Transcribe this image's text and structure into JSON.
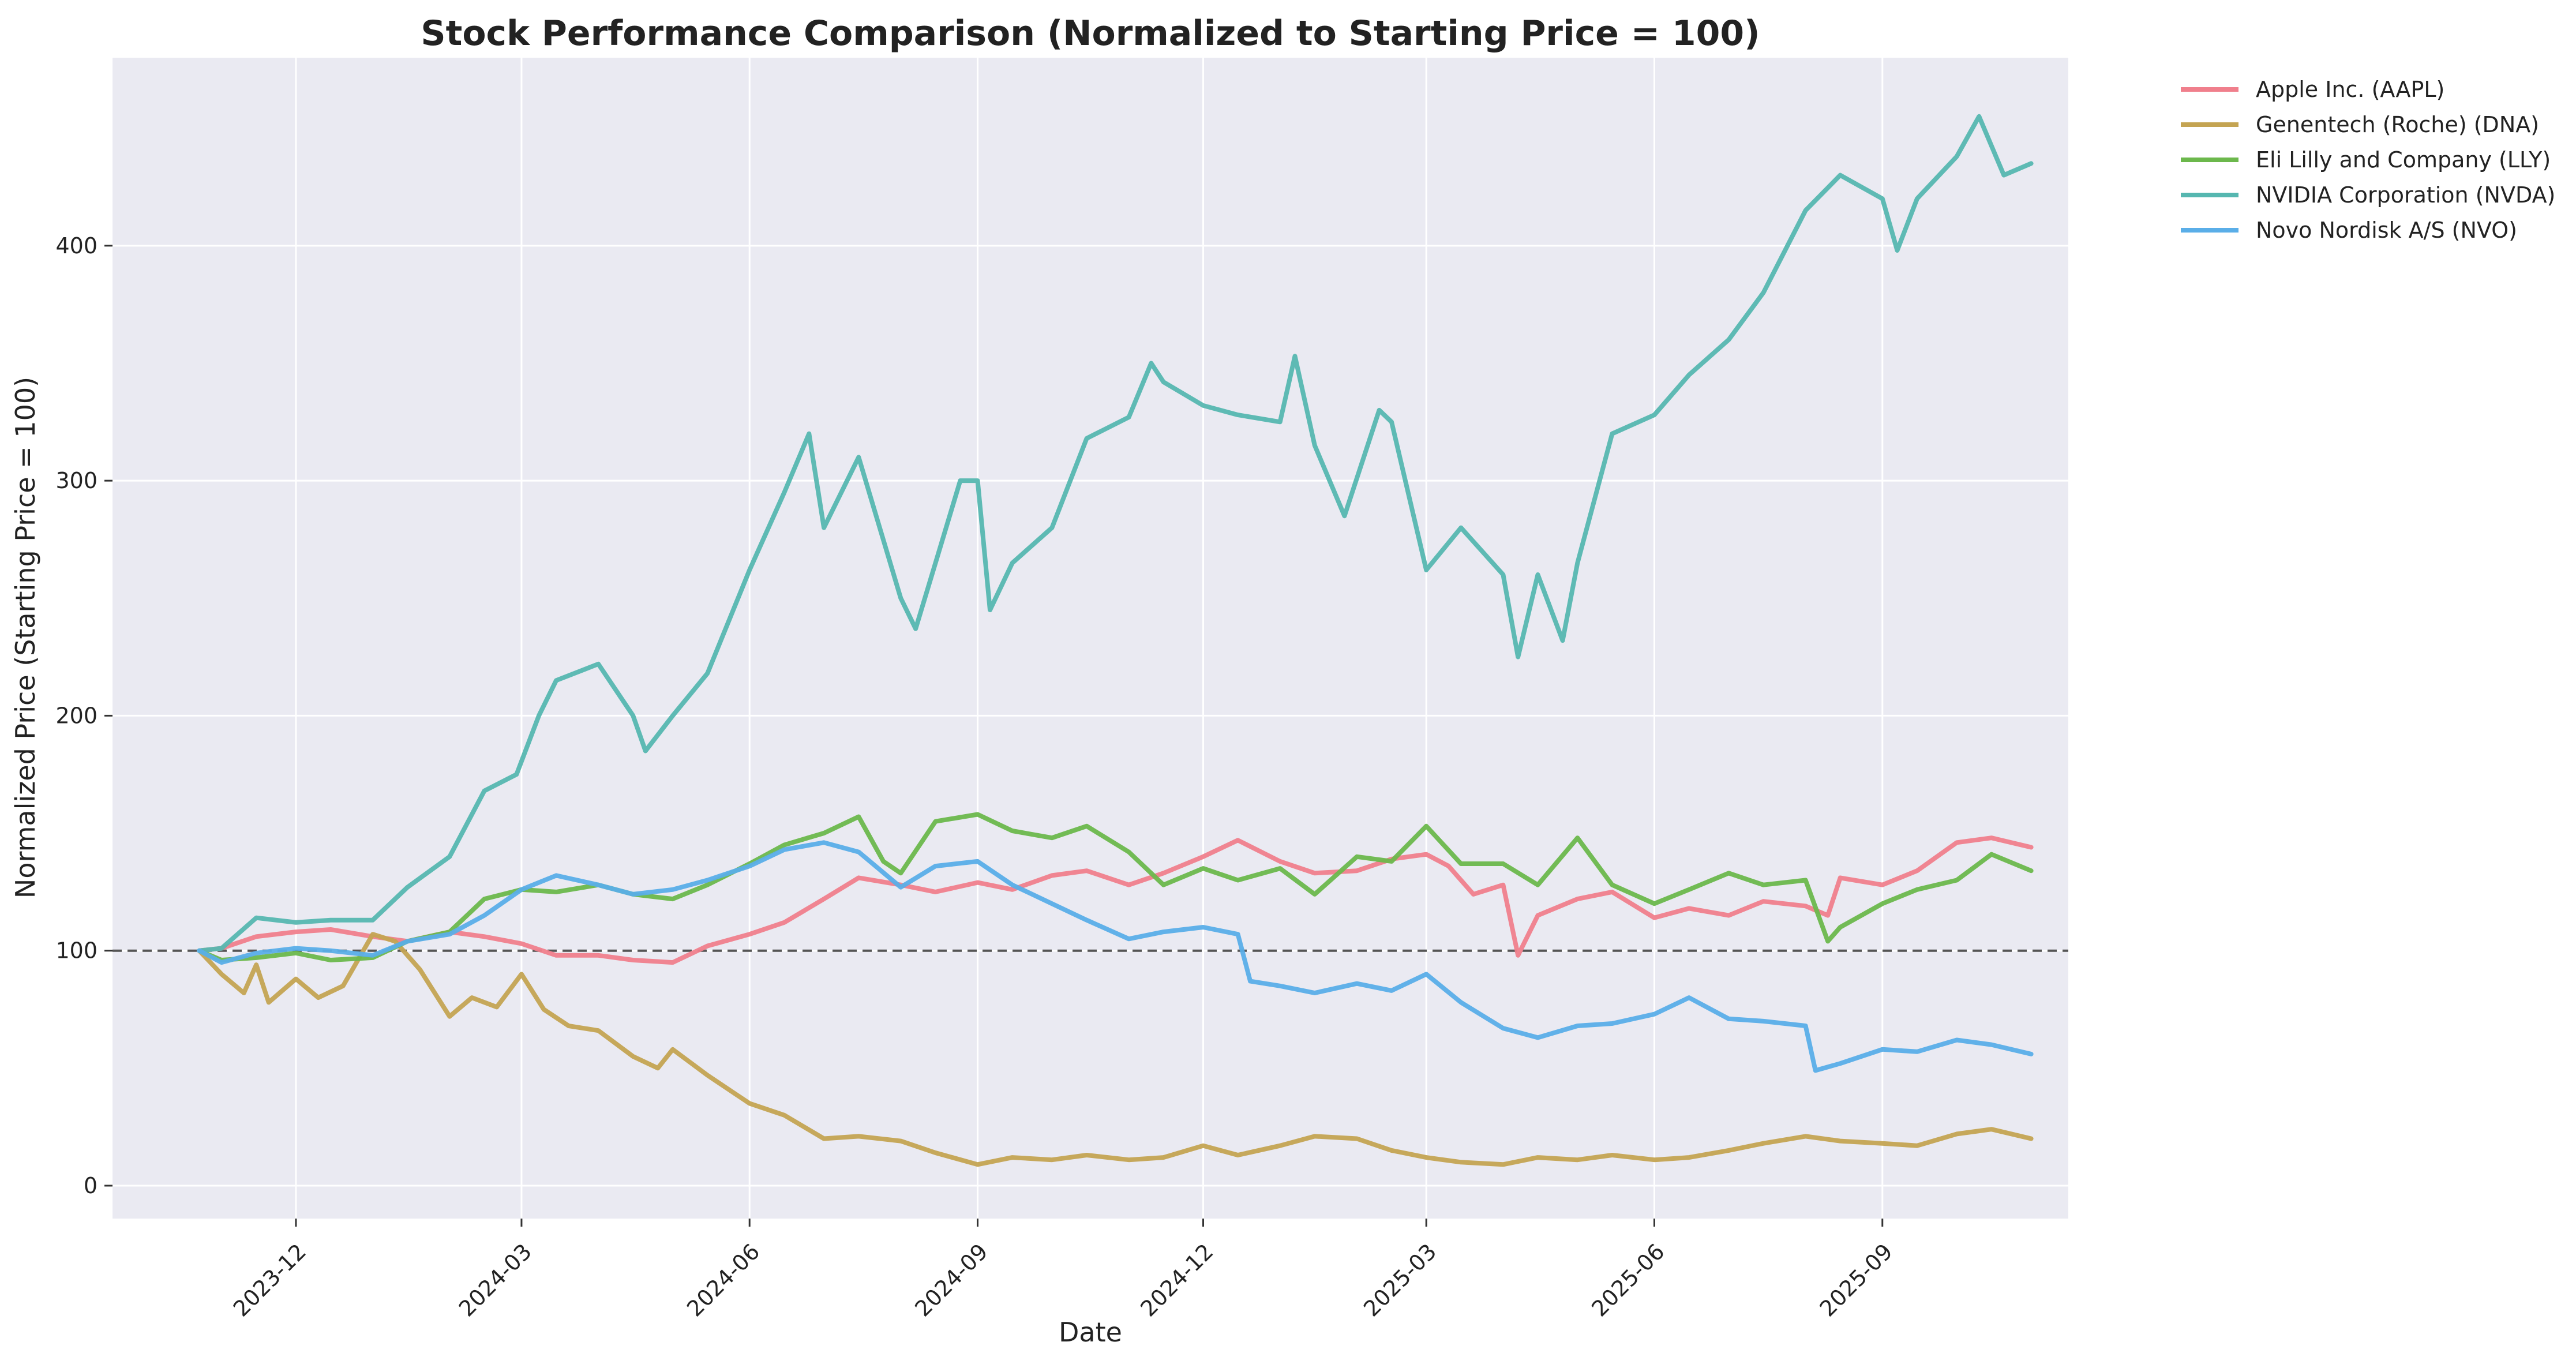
{
  "chart_data": {
    "type": "line",
    "title": "Stock Performance Comparison (Normalized to Starting Price = 100)",
    "xlabel": "Date",
    "ylabel": "Normalized Price (Starting Price = 100)",
    "x_ticks": [
      "2023-12",
      "2024-03",
      "2024-06",
      "2024-09",
      "2024-12",
      "2025-03",
      "2025-06",
      "2025-09"
    ],
    "xlim": [
      "2023-09-18",
      "2025-11-15"
    ],
    "y_ticks": [
      0,
      100,
      200,
      300,
      400
    ],
    "ylim": [
      -14,
      480
    ],
    "grid": true,
    "background": "#eaeaf2",
    "reference_line": {
      "y": 100,
      "style": "dashed",
      "color": "#555555"
    },
    "legend_position": "outside-top-right",
    "series": [
      {
        "name": "Apple Inc. (AAPL)",
        "color": "#f07f8c",
        "points": [
          [
            "2023-10-23",
            100
          ],
          [
            "2023-11-01",
            101
          ],
          [
            "2023-11-15",
            106
          ],
          [
            "2023-12-01",
            108
          ],
          [
            "2023-12-15",
            109
          ],
          [
            "2024-01-01",
            106
          ],
          [
            "2024-01-15",
            104
          ],
          [
            "2024-02-01",
            108
          ],
          [
            "2024-02-15",
            106
          ],
          [
            "2024-03-01",
            103
          ],
          [
            "2024-03-15",
            98
          ],
          [
            "2024-04-01",
            98
          ],
          [
            "2024-04-15",
            96
          ],
          [
            "2024-05-01",
            95
          ],
          [
            "2024-05-15",
            102
          ],
          [
            "2024-06-01",
            107
          ],
          [
            "2024-06-15",
            112
          ],
          [
            "2024-07-01",
            122
          ],
          [
            "2024-07-15",
            131
          ],
          [
            "2024-08-01",
            128
          ],
          [
            "2024-08-15",
            125
          ],
          [
            "2024-09-01",
            129
          ],
          [
            "2024-09-15",
            126
          ],
          [
            "2024-10-01",
            132
          ],
          [
            "2024-10-15",
            134
          ],
          [
            "2024-11-01",
            128
          ],
          [
            "2024-11-15",
            133
          ],
          [
            "2024-12-01",
            140
          ],
          [
            "2024-12-15",
            147
          ],
          [
            "2025-01-01",
            138
          ],
          [
            "2025-01-15",
            133
          ],
          [
            "2025-02-01",
            134
          ],
          [
            "2025-02-15",
            139
          ],
          [
            "2025-03-01",
            141
          ],
          [
            "2025-03-10",
            136
          ],
          [
            "2025-03-20",
            124
          ],
          [
            "2025-04-01",
            128
          ],
          [
            "2025-04-07",
            98
          ],
          [
            "2025-04-15",
            115
          ],
          [
            "2025-05-01",
            122
          ],
          [
            "2025-05-15",
            125
          ],
          [
            "2025-06-01",
            114
          ],
          [
            "2025-06-15",
            118
          ],
          [
            "2025-07-01",
            115
          ],
          [
            "2025-07-15",
            121
          ],
          [
            "2025-08-01",
            119
          ],
          [
            "2025-08-10",
            115
          ],
          [
            "2025-08-15",
            131
          ],
          [
            "2025-09-01",
            128
          ],
          [
            "2025-09-15",
            134
          ],
          [
            "2025-10-01",
            146
          ],
          [
            "2025-10-15",
            148
          ],
          [
            "2025-10-31",
            144
          ]
        ]
      },
      {
        "name": "Genentech (Roche) (DNA)",
        "color": "#c4a452",
        "points": [
          [
            "2023-10-23",
            100
          ],
          [
            "2023-11-01",
            90
          ],
          [
            "2023-11-10",
            82
          ],
          [
            "2023-11-15",
            94
          ],
          [
            "2023-11-20",
            78
          ],
          [
            "2023-12-01",
            88
          ],
          [
            "2023-12-10",
            80
          ],
          [
            "2023-12-20",
            85
          ],
          [
            "2024-01-01",
            107
          ],
          [
            "2024-01-10",
            104
          ],
          [
            "2024-01-20",
            92
          ],
          [
            "2024-02-01",
            72
          ],
          [
            "2024-02-10",
            80
          ],
          [
            "2024-02-20",
            76
          ],
          [
            "2024-03-01",
            90
          ],
          [
            "2024-03-10",
            75
          ],
          [
            "2024-03-20",
            68
          ],
          [
            "2024-04-01",
            66
          ],
          [
            "2024-04-15",
            55
          ],
          [
            "2024-04-25",
            50
          ],
          [
            "2024-05-01",
            58
          ],
          [
            "2024-05-15",
            47
          ],
          [
            "2024-06-01",
            35
          ],
          [
            "2024-06-15",
            30
          ],
          [
            "2024-07-01",
            20
          ],
          [
            "2024-07-15",
            21
          ],
          [
            "2024-08-01",
            19
          ],
          [
            "2024-08-15",
            14
          ],
          [
            "2024-09-01",
            9
          ],
          [
            "2024-09-15",
            12
          ],
          [
            "2024-10-01",
            11
          ],
          [
            "2024-10-15",
            13
          ],
          [
            "2024-11-01",
            11
          ],
          [
            "2024-11-15",
            12
          ],
          [
            "2024-12-01",
            17
          ],
          [
            "2024-12-15",
            13
          ],
          [
            "2025-01-01",
            17
          ],
          [
            "2025-01-15",
            21
          ],
          [
            "2025-02-01",
            20
          ],
          [
            "2025-02-15",
            15
          ],
          [
            "2025-03-01",
            12
          ],
          [
            "2025-03-15",
            10
          ],
          [
            "2025-04-01",
            9
          ],
          [
            "2025-04-15",
            12
          ],
          [
            "2025-05-01",
            11
          ],
          [
            "2025-05-15",
            13
          ],
          [
            "2025-06-01",
            11
          ],
          [
            "2025-06-15",
            12
          ],
          [
            "2025-07-01",
            15
          ],
          [
            "2025-07-15",
            18
          ],
          [
            "2025-08-01",
            21
          ],
          [
            "2025-08-15",
            19
          ],
          [
            "2025-09-01",
            18
          ],
          [
            "2025-09-15",
            17
          ],
          [
            "2025-10-01",
            22
          ],
          [
            "2025-10-15",
            24
          ],
          [
            "2025-10-31",
            20
          ]
        ]
      },
      {
        "name": "Eli Lilly and Company (LLY)",
        "color": "#6cb84c",
        "points": [
          [
            "2023-10-23",
            100
          ],
          [
            "2023-11-01",
            96
          ],
          [
            "2023-11-15",
            97
          ],
          [
            "2023-12-01",
            99
          ],
          [
            "2023-12-15",
            96
          ],
          [
            "2024-01-01",
            97
          ],
          [
            "2024-01-15",
            104
          ],
          [
            "2024-02-01",
            108
          ],
          [
            "2024-02-15",
            122
          ],
          [
            "2024-03-01",
            126
          ],
          [
            "2024-03-15",
            125
          ],
          [
            "2024-04-01",
            128
          ],
          [
            "2024-04-15",
            124
          ],
          [
            "2024-05-01",
            122
          ],
          [
            "2024-05-15",
            128
          ],
          [
            "2024-06-01",
            137
          ],
          [
            "2024-06-15",
            145
          ],
          [
            "2024-07-01",
            150
          ],
          [
            "2024-07-15",
            157
          ],
          [
            "2024-07-25",
            138
          ],
          [
            "2024-08-01",
            133
          ],
          [
            "2024-08-15",
            155
          ],
          [
            "2024-09-01",
            158
          ],
          [
            "2024-09-15",
            151
          ],
          [
            "2024-10-01",
            148
          ],
          [
            "2024-10-15",
            153
          ],
          [
            "2024-11-01",
            142
          ],
          [
            "2024-11-15",
            128
          ],
          [
            "2024-12-01",
            135
          ],
          [
            "2024-12-15",
            130
          ],
          [
            "2025-01-01",
            135
          ],
          [
            "2025-01-15",
            124
          ],
          [
            "2025-02-01",
            140
          ],
          [
            "2025-02-15",
            138
          ],
          [
            "2025-03-01",
            153
          ],
          [
            "2025-03-15",
            137
          ],
          [
            "2025-04-01",
            137
          ],
          [
            "2025-04-15",
            128
          ],
          [
            "2025-05-01",
            148
          ],
          [
            "2025-05-15",
            128
          ],
          [
            "2025-06-01",
            120
          ],
          [
            "2025-06-15",
            126
          ],
          [
            "2025-07-01",
            133
          ],
          [
            "2025-07-15",
            128
          ],
          [
            "2025-08-01",
            130
          ],
          [
            "2025-08-10",
            104
          ],
          [
            "2025-08-15",
            110
          ],
          [
            "2025-09-01",
            120
          ],
          [
            "2025-09-15",
            126
          ],
          [
            "2025-10-01",
            130
          ],
          [
            "2025-10-15",
            141
          ],
          [
            "2025-10-31",
            134
          ]
        ]
      },
      {
        "name": "NVIDIA Corporation (NVDA)",
        "color": "#56b7b0",
        "points": [
          [
            "2023-10-23",
            100
          ],
          [
            "2023-11-01",
            101
          ],
          [
            "2023-11-15",
            114
          ],
          [
            "2023-12-01",
            112
          ],
          [
            "2023-12-15",
            113
          ],
          [
            "2024-01-01",
            113
          ],
          [
            "2024-01-15",
            127
          ],
          [
            "2024-02-01",
            140
          ],
          [
            "2024-02-15",
            168
          ],
          [
            "2024-02-28",
            175
          ],
          [
            "2024-03-08",
            200
          ],
          [
            "2024-03-15",
            215
          ],
          [
            "2024-04-01",
            222
          ],
          [
            "2024-04-15",
            200
          ],
          [
            "2024-04-20",
            185
          ],
          [
            "2024-05-01",
            200
          ],
          [
            "2024-05-15",
            218
          ],
          [
            "2024-06-01",
            262
          ],
          [
            "2024-06-15",
            295
          ],
          [
            "2024-06-25",
            320
          ],
          [
            "2024-07-01",
            280
          ],
          [
            "2024-07-15",
            310
          ],
          [
            "2024-08-01",
            250
          ],
          [
            "2024-08-07",
            237
          ],
          [
            "2024-08-15",
            265
          ],
          [
            "2024-08-25",
            300
          ],
          [
            "2024-09-01",
            300
          ],
          [
            "2024-09-06",
            245
          ],
          [
            "2024-09-15",
            265
          ],
          [
            "2024-10-01",
            280
          ],
          [
            "2024-10-15",
            318
          ],
          [
            "2024-11-01",
            327
          ],
          [
            "2024-11-10",
            350
          ],
          [
            "2024-11-15",
            342
          ],
          [
            "2024-12-01",
            332
          ],
          [
            "2024-12-15",
            328
          ],
          [
            "2025-01-01",
            325
          ],
          [
            "2025-01-07",
            353
          ],
          [
            "2025-01-15",
            315
          ],
          [
            "2025-01-27",
            285
          ],
          [
            "2025-02-10",
            330
          ],
          [
            "2025-02-15",
            325
          ],
          [
            "2025-03-01",
            262
          ],
          [
            "2025-03-15",
            280
          ],
          [
            "2025-04-01",
            260
          ],
          [
            "2025-04-07",
            225
          ],
          [
            "2025-04-15",
            260
          ],
          [
            "2025-04-25",
            232
          ],
          [
            "2025-05-01",
            265
          ],
          [
            "2025-05-15",
            320
          ],
          [
            "2025-06-01",
            328
          ],
          [
            "2025-06-15",
            345
          ],
          [
            "2025-07-01",
            360
          ],
          [
            "2025-07-15",
            380
          ],
          [
            "2025-08-01",
            415
          ],
          [
            "2025-08-15",
            430
          ],
          [
            "2025-09-01",
            420
          ],
          [
            "2025-09-07",
            398
          ],
          [
            "2025-09-15",
            420
          ],
          [
            "2025-10-01",
            438
          ],
          [
            "2025-10-10",
            455
          ],
          [
            "2025-10-20",
            430
          ],
          [
            "2025-10-31",
            435
          ]
        ]
      },
      {
        "name": "Novo Nordisk A/S (NVO)",
        "color": "#5aaee8",
        "points": [
          [
            "2023-10-23",
            100
          ],
          [
            "2023-11-01",
            95
          ],
          [
            "2023-11-15",
            99
          ],
          [
            "2023-12-01",
            101
          ],
          [
            "2023-12-15",
            100
          ],
          [
            "2024-01-01",
            98
          ],
          [
            "2024-01-15",
            104
          ],
          [
            "2024-02-01",
            107
          ],
          [
            "2024-02-15",
            115
          ],
          [
            "2024-03-01",
            126
          ],
          [
            "2024-03-15",
            132
          ],
          [
            "2024-04-01",
            128
          ],
          [
            "2024-04-15",
            124
          ],
          [
            "2024-05-01",
            126
          ],
          [
            "2024-05-15",
            130
          ],
          [
            "2024-06-01",
            136
          ],
          [
            "2024-06-15",
            143
          ],
          [
            "2024-07-01",
            146
          ],
          [
            "2024-07-15",
            142
          ],
          [
            "2024-08-01",
            127
          ],
          [
            "2024-08-15",
            136
          ],
          [
            "2024-09-01",
            138
          ],
          [
            "2024-09-15",
            128
          ],
          [
            "2024-10-01",
            120
          ],
          [
            "2024-10-15",
            113
          ],
          [
            "2024-11-01",
            105
          ],
          [
            "2024-11-15",
            108
          ],
          [
            "2024-12-01",
            110
          ],
          [
            "2024-12-15",
            107
          ],
          [
            "2024-12-20",
            87
          ],
          [
            "2025-01-01",
            85
          ],
          [
            "2025-01-15",
            82
          ],
          [
            "2025-02-01",
            86
          ],
          [
            "2025-02-15",
            83
          ],
          [
            "2025-03-01",
            90
          ],
          [
            "2025-03-15",
            78
          ],
          [
            "2025-04-01",
            67
          ],
          [
            "2025-04-15",
            63
          ],
          [
            "2025-05-01",
            68
          ],
          [
            "2025-05-15",
            69
          ],
          [
            "2025-06-01",
            73
          ],
          [
            "2025-06-15",
            80
          ],
          [
            "2025-07-01",
            71
          ],
          [
            "2025-07-15",
            70
          ],
          [
            "2025-08-01",
            68
          ],
          [
            "2025-08-05",
            49
          ],
          [
            "2025-08-15",
            52
          ],
          [
            "2025-09-01",
            58
          ],
          [
            "2025-09-15",
            57
          ],
          [
            "2025-10-01",
            62
          ],
          [
            "2025-10-15",
            60
          ],
          [
            "2025-10-31",
            56
          ]
        ]
      }
    ]
  }
}
